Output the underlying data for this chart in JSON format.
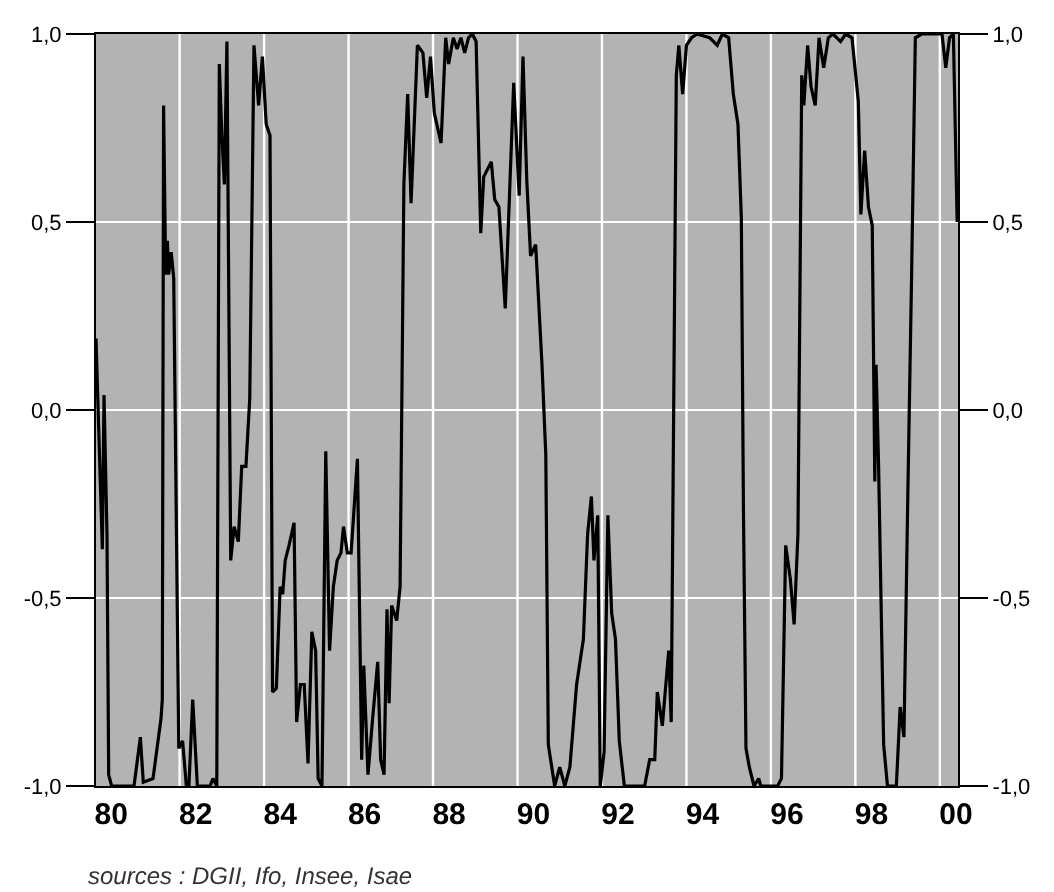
{
  "chart_data": {
    "type": "line",
    "x": [
      1979.64,
      1979.79,
      1979.83,
      1979.9,
      1979.94,
      1980.01,
      1980.54,
      1980.69,
      1980.76,
      1980.99,
      1981.18,
      1981.21,
      1981.24,
      1981.29,
      1981.33,
      1981.36,
      1981.42,
      1981.48,
      1981.6,
      1981.69,
      1981.78,
      1981.84,
      1981.93,
      1982.04,
      1982.34,
      1982.41,
      1982.5,
      1982.56,
      1982.62,
      1982.68,
      1982.74,
      1982.83,
      1982.91,
      1983.01,
      1983.09,
      1983.19,
      1983.28,
      1983.38,
      1983.49,
      1983.58,
      1983.67,
      1983.76,
      1983.82,
      1983.91,
      1984.0,
      1984.06,
      1984.12,
      1984.21,
      1984.33,
      1984.39,
      1984.48,
      1984.57,
      1984.66,
      1984.75,
      1984.84,
      1984.9,
      1984.99,
      1985.08,
      1985.17,
      1985.26,
      1985.35,
      1985.44,
      1985.5,
      1985.59,
      1985.68,
      1985.74,
      1985.83,
      1985.93,
      1985.98,
      1986.08,
      1986.19,
      1986.31,
      1986.38,
      1986.46,
      1986.53,
      1986.58,
      1986.64,
      1986.76,
      1986.84,
      1986.93,
      1987.02,
      1987.1,
      1987.25,
      1987.38,
      1987.47,
      1987.56,
      1987.65,
      1987.81,
      1987.92,
      1987.99,
      1988.1,
      1988.19,
      1988.28,
      1988.37,
      1988.46,
      1988.55,
      1988.64,
      1988.75,
      1988.82,
      1989.0,
      1989.08,
      1989.18,
      1989.33,
      1989.53,
      1989.66,
      1989.75,
      1989.84,
      1989.93,
      1990.05,
      1990.2,
      1990.29,
      1990.35,
      1990.5,
      1990.62,
      1990.74,
      1990.86,
      1991.02,
      1991.18,
      1991.28,
      1991.37,
      1991.43,
      1991.52,
      1991.58,
      1991.67,
      1991.76,
      1991.85,
      1991.94,
      1992.03,
      1992.15,
      1992.63,
      1992.75,
      1992.87,
      1992.93,
      1993.05,
      1993.2,
      1993.26,
      1993.38,
      1993.44,
      1993.53,
      1993.62,
      1993.74,
      1993.87,
      1994.17,
      1994.35,
      1994.47,
      1994.62,
      1994.73,
      1994.84,
      1994.92,
      1994.97,
      1995.03,
      1995.11,
      1995.22,
      1995.33,
      1995.38,
      1995.78,
      1995.87,
      1995.97,
      1996.08,
      1996.17,
      1996.26,
      1996.35,
      1996.4,
      1996.49,
      1996.57,
      1996.67,
      1996.76,
      1996.87,
      1996.98,
      1997.09,
      1997.27,
      1997.39,
      1997.54,
      1997.69,
      1997.75,
      1997.84,
      1997.93,
      1998.02,
      1998.08,
      1998.11,
      1998.17,
      1998.29,
      1998.38,
      1998.59,
      1998.68,
      1998.77,
      1998.86,
      1998.95,
      1999.04,
      1999.19,
      1999.67,
      1999.76,
      1999.85,
      1999.94,
      2000.03
    ],
    "series": [
      {
        "color": "#000000",
        "values": [
          0.19,
          -0.37,
          0.04,
          -0.33,
          -0.97,
          -1.0,
          -1.0,
          -0.87,
          -0.99,
          -0.98,
          -0.82,
          -0.77,
          0.81,
          0.36,
          0.45,
          0.36,
          0.42,
          0.35,
          -0.9,
          -0.88,
          -1.0,
          -1.0,
          -0.77,
          -1.0,
          -1.0,
          -0.98,
          -1.0,
          0.92,
          0.73,
          0.6,
          0.98,
          -0.4,
          -0.31,
          -0.35,
          -0.15,
          -0.15,
          0.03,
          0.97,
          0.81,
          0.94,
          0.76,
          0.73,
          -0.75,
          -0.74,
          -0.47,
          -0.49,
          -0.4,
          -0.36,
          -0.3,
          -0.83,
          -0.73,
          -0.73,
          -0.94,
          -0.59,
          -0.64,
          -0.98,
          -1.0,
          -0.11,
          -0.64,
          -0.47,
          -0.4,
          -0.38,
          -0.31,
          -0.38,
          -0.38,
          -0.28,
          -0.13,
          -0.93,
          -0.68,
          -0.97,
          -0.82,
          -0.67,
          -0.93,
          -0.97,
          -0.53,
          -0.78,
          -0.52,
          -0.56,
          -0.47,
          0.6,
          0.84,
          0.55,
          0.97,
          0.95,
          0.83,
          0.94,
          0.79,
          0.71,
          0.99,
          0.92,
          0.99,
          0.96,
          0.99,
          0.95,
          0.99,
          1.0,
          0.98,
          0.47,
          0.62,
          0.66,
          0.56,
          0.54,
          0.27,
          0.87,
          0.57,
          0.94,
          0.61,
          0.41,
          0.44,
          0.12,
          -0.12,
          -0.89,
          -1.0,
          -0.95,
          -1.0,
          -0.95,
          -0.73,
          -0.61,
          -0.33,
          -0.23,
          -0.4,
          -0.28,
          -1.0,
          -0.91,
          -0.28,
          -0.54,
          -0.61,
          -0.88,
          -1.0,
          -1.0,
          -0.93,
          -0.93,
          -0.75,
          -0.84,
          -0.64,
          -0.83,
          0.89,
          0.97,
          0.84,
          0.97,
          0.99,
          1.0,
          0.99,
          0.97,
          1.0,
          0.99,
          0.84,
          0.76,
          0.51,
          -0.27,
          -0.9,
          -0.95,
          -1.0,
          -0.98,
          -1.0,
          -1.0,
          -0.98,
          -0.36,
          -0.45,
          -0.57,
          -0.33,
          0.89,
          0.81,
          0.97,
          0.86,
          0.81,
          0.99,
          0.91,
          0.99,
          1.0,
          0.98,
          1.0,
          0.99,
          0.82,
          0.52,
          0.69,
          0.54,
          0.49,
          -0.19,
          0.12,
          -0.15,
          -0.89,
          -1.0,
          -1.0,
          -0.79,
          -0.87,
          -0.24,
          0.35,
          0.99,
          1.0,
          1.0,
          0.91,
          0.99,
          1.0,
          0.5
        ]
      }
    ],
    "xlim": [
      1979.64,
      2000.05
    ],
    "xticks": [
      {
        "value": 1980,
        "label": "80"
      },
      {
        "value": 1981.62,
        "label": null
      },
      {
        "value": 1982,
        "label": "82"
      },
      {
        "value": 1983.62,
        "label": null
      },
      {
        "value": 1984,
        "label": "84"
      },
      {
        "value": 1985.62,
        "label": null
      },
      {
        "value": 1986,
        "label": "86"
      },
      {
        "value": 1987.62,
        "label": null
      },
      {
        "value": 1988,
        "label": "88"
      },
      {
        "value": 1989.62,
        "label": null
      },
      {
        "value": 1990,
        "label": "90"
      },
      {
        "value": 1991.62,
        "label": null
      },
      {
        "value": 1992,
        "label": "92"
      },
      {
        "value": 1993.62,
        "label": null
      },
      {
        "value": 1994,
        "label": "94"
      },
      {
        "value": 1995.62,
        "label": null
      },
      {
        "value": 1996,
        "label": "96"
      },
      {
        "value": 1997.62,
        "label": null
      },
      {
        "value": 1998,
        "label": "98"
      },
      {
        "value": 1999.62,
        "label": null
      },
      {
        "value": 2000,
        "label": "00"
      }
    ],
    "ylim": [
      -1,
      1
    ],
    "yticks": [
      {
        "value": -1,
        "label": "-1,0"
      },
      {
        "value": -0.5,
        "label": "-0,5"
      },
      {
        "value": 0,
        "label": "0,0"
      },
      {
        "value": 0.5,
        "label": "0,5"
      },
      {
        "value": 1,
        "label": "1,0"
      }
    ],
    "y2lim": [
      -1,
      1
    ],
    "y2ticks": [
      {
        "value": -1,
        "label": "-1,0"
      },
      {
        "value": -0.5,
        "label": "-0,5"
      },
      {
        "value": 0,
        "label": "0,0"
      },
      {
        "value": 0.5,
        "label": "0,5"
      },
      {
        "value": 1,
        "label": "1,0"
      }
    ],
    "grid": true,
    "legend": false,
    "annotations": [
      "sources : DGII, Ifo, Insee, Isae"
    ]
  }
}
